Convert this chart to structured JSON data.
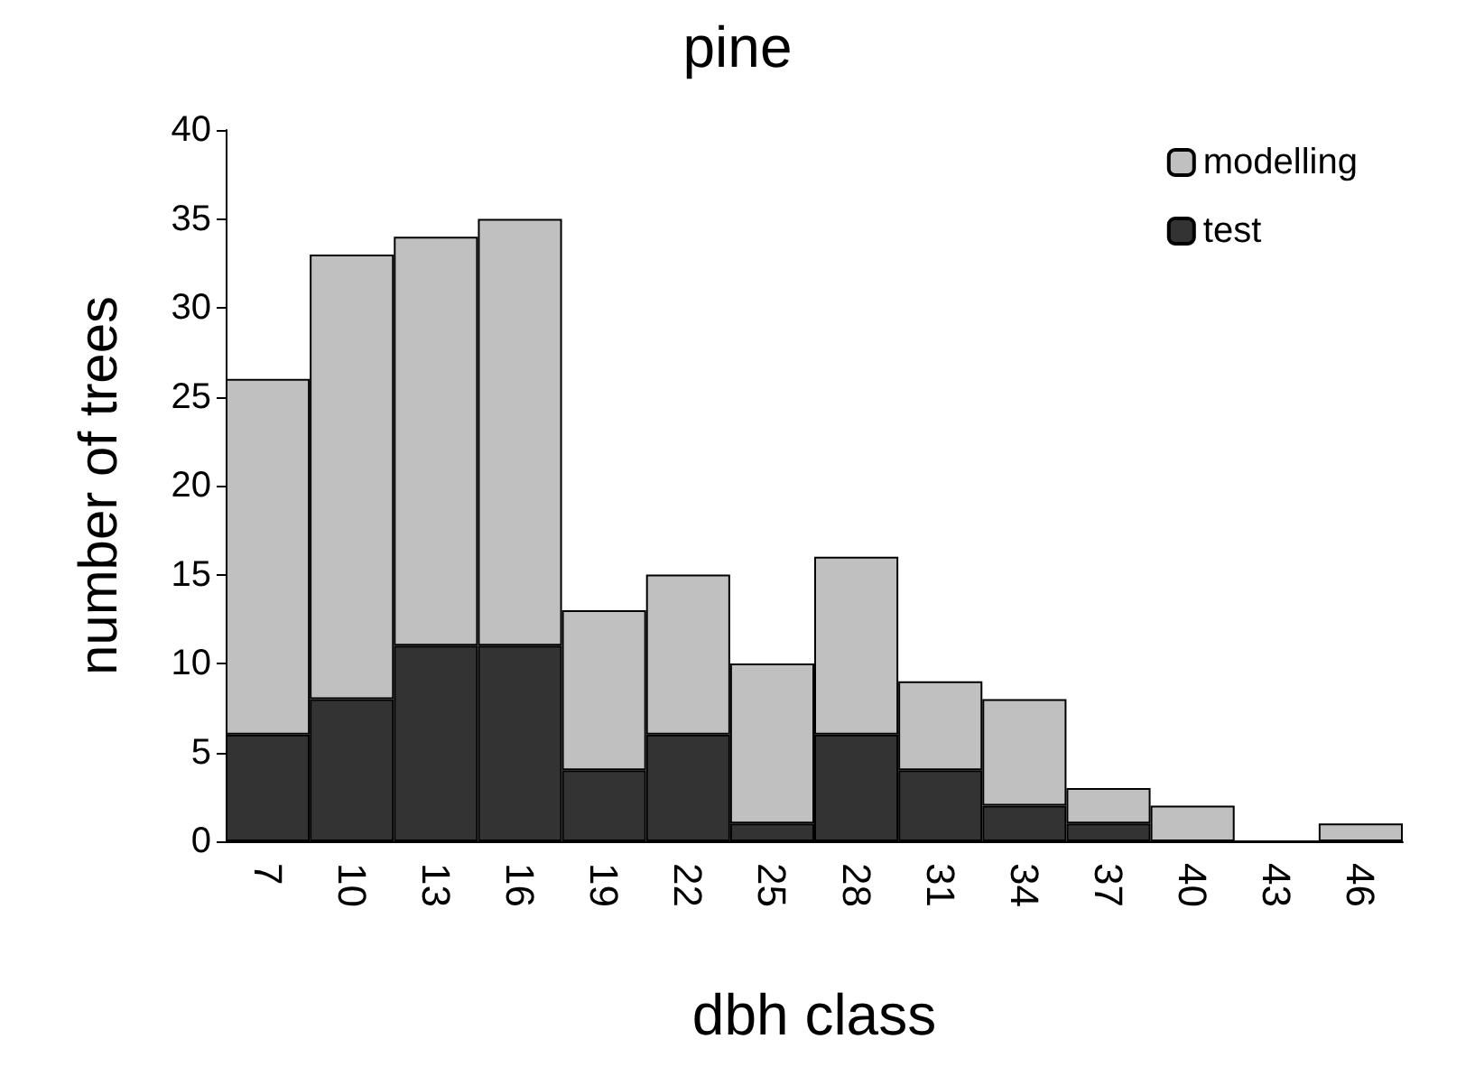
{
  "chart_data": {
    "type": "bar",
    "title": "pine",
    "xlabel": "dbh class",
    "ylabel": "number of trees",
    "stacked": true,
    "categories": [
      "7",
      "10",
      "13",
      "16",
      "19",
      "22",
      "25",
      "28",
      "31",
      "34",
      "37",
      "40",
      "43",
      "46"
    ],
    "series": [
      {
        "name": "test",
        "color": "#333333",
        "values": [
          6,
          8,
          11,
          11,
          4,
          6,
          1,
          6,
          4,
          2,
          1,
          0,
          0,
          0
        ]
      },
      {
        "name": "modelling",
        "color": "#c0c0c0",
        "values": [
          20,
          25,
          23,
          24,
          9,
          9,
          9,
          10,
          5,
          6,
          2,
          2,
          0,
          1
        ]
      }
    ],
    "ylim": [
      0,
      40
    ],
    "yticks": [
      0,
      5,
      10,
      15,
      20,
      25,
      30,
      35,
      40
    ],
    "grid": false,
    "legend": "top right"
  }
}
